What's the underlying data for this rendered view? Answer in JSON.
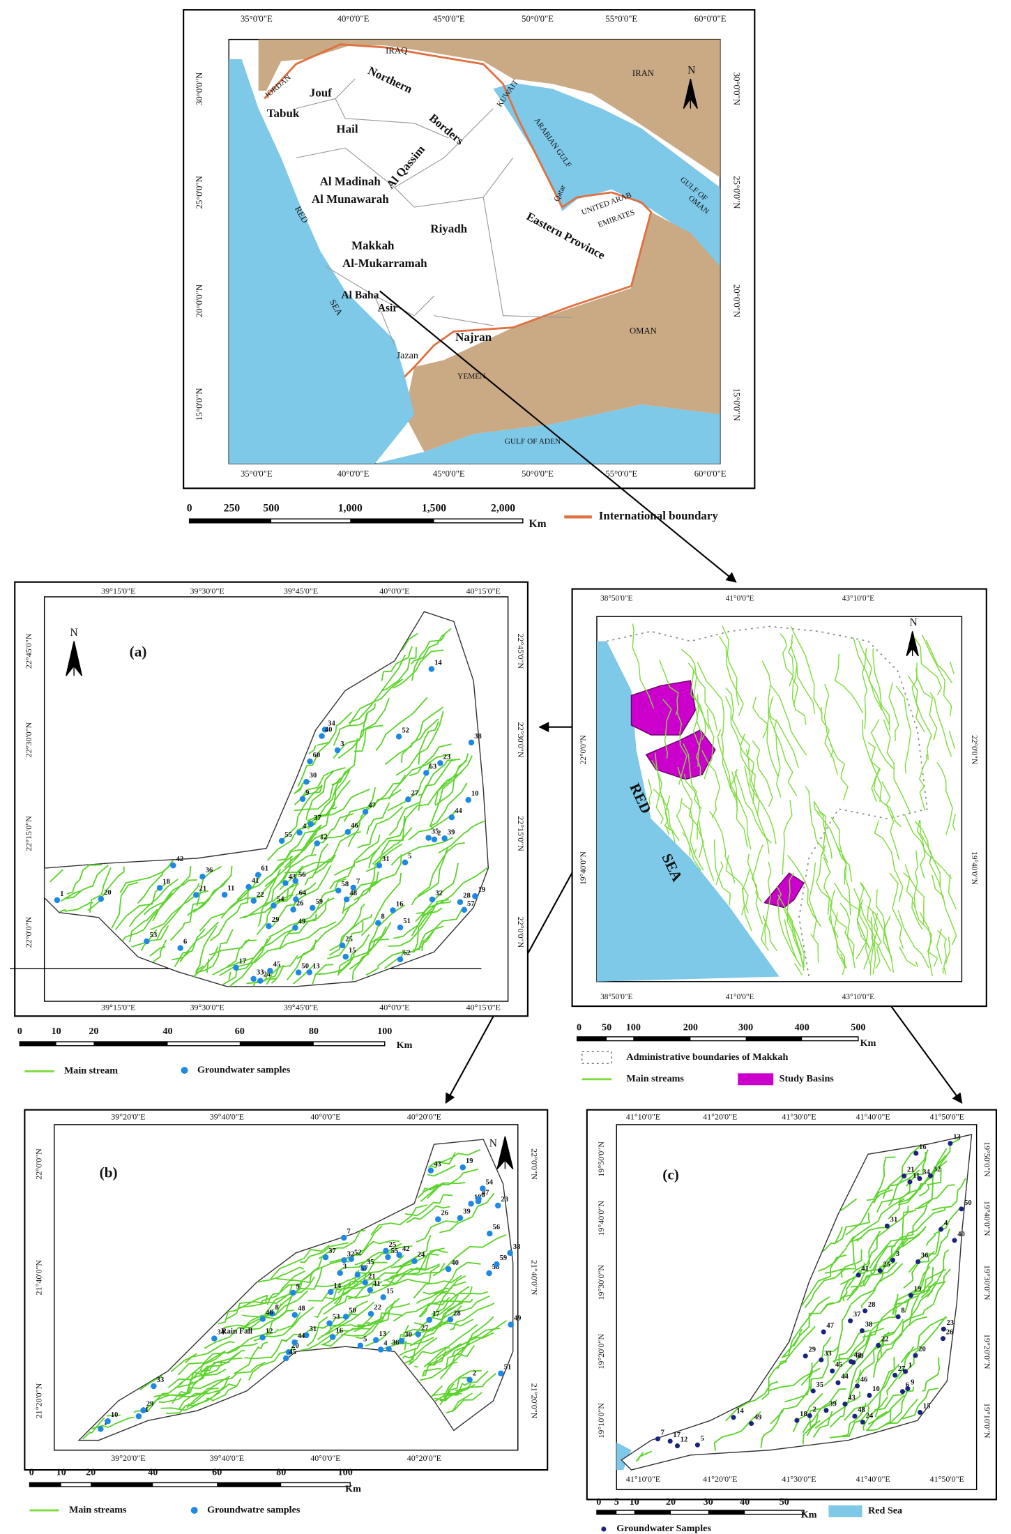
{
  "overview_map": {
    "lon_labels": [
      "35°0'0\"E",
      "40°0'0\"E",
      "45°0'0\"E",
      "50°0'0\"E",
      "55°0'0\"E",
      "60°0'0\"E"
    ],
    "lat_labels": [
      "30°0'0\"N",
      "25°0'0\"N",
      "20°0'0\"N",
      "15°0'0\"N"
    ],
    "place_labels": [
      "JORDAN",
      "IRAQ",
      "IRAN",
      "KUWAIT",
      "Jouf",
      "Northern",
      "Borders",
      "Tabuk",
      "Hail",
      "Al Qassim",
      "ARABIAN GULF",
      "Qatar",
      "UNITED ARAB",
      "EMIRATES",
      "GULF OF",
      "OMAN",
      "Al Madinah",
      "Al Munawarah",
      "Riyadh",
      "Eastern Province",
      "Makkah",
      "Al-Mukarramah",
      "RED",
      "SEA",
      "Al Baha",
      "Asir",
      "OMAN",
      "Najran",
      "Jazan",
      "YEMEN",
      "GULF OF ADEN"
    ],
    "north": "N",
    "scale_labels": [
      "0",
      "250",
      "500",
      "1,000",
      "1,500",
      "2,000"
    ],
    "scale_unit": "Km",
    "legend": "International boundary"
  },
  "makkah_map": {
    "lon_labels": [
      "38°50'0\"E",
      "41°0'0\"E",
      "43°10'0\"E"
    ],
    "lat_labels": [
      "22°0'0\"N",
      "19°40'0\"N"
    ],
    "sea_labels": [
      "RED",
      "SEA"
    ],
    "north": "N",
    "scale_labels": [
      "0",
      "50",
      "100",
      "200",
      "300",
      "400",
      "500"
    ],
    "scale_unit": "Km",
    "legend": [
      "Administrative boundaries of Makkah",
      "Main streams",
      "Study Basins"
    ]
  },
  "panel_a": {
    "label": "(a)",
    "lon_labels": [
      "39°15'0\"E",
      "39°30'0\"E",
      "39°45'0\"E",
      "40°0'0\"E",
      "40°15'0\"E"
    ],
    "lat_labels": [
      "22°45'0\"N",
      "22°30'0\"N",
      "22°15'0\"N",
      "22°0'0\"N"
    ],
    "north": "N",
    "samples": [
      "1",
      "2",
      "3",
      "4",
      "5",
      "6",
      "7",
      "8",
      "9",
      "10",
      "11",
      "12",
      "13",
      "14",
      "15",
      "16",
      "17",
      "18",
      "19",
      "20",
      "21",
      "22",
      "23",
      "24",
      "25",
      "26",
      "27",
      "28",
      "29",
      "30",
      "31",
      "32",
      "33",
      "34",
      "35",
      "36",
      "37",
      "38",
      "39",
      "40",
      "41",
      "42",
      "43",
      "44",
      "45",
      "46",
      "47",
      "48",
      "49",
      "50",
      "51",
      "52",
      "53",
      "54",
      "55",
      "56",
      "57",
      "58",
      "59",
      "60",
      "61",
      "62",
      "63",
      "64"
    ],
    "scale_labels": [
      "0",
      "10",
      "20",
      "40",
      "60",
      "80",
      "100"
    ],
    "scale_unit": "Km",
    "legend": [
      "Main stream",
      "Groundwater samples"
    ]
  },
  "panel_b": {
    "label": "(b)",
    "lon_labels": [
      "39°20'0\"E",
      "39°40'0\"E",
      "40°0'0\"E",
      "40°20'0\"E"
    ],
    "lat_labels": [
      "22°0'0\"N",
      "21°40'0\"N",
      "21°20'0\"N"
    ],
    "north": "N",
    "samples": [
      "1",
      "2",
      "3",
      "4",
      "5",
      "6",
      "7",
      "8",
      "9",
      "10",
      "11",
      "12",
      "13",
      "14",
      "15",
      "16",
      "17",
      "18",
      "19",
      "20",
      "21",
      "22",
      "23",
      "24",
      "25",
      "26",
      "27",
      "28",
      "29",
      "30",
      "31",
      "32",
      "33",
      "34",
      "35",
      "36",
      "37",
      "38",
      "39",
      "40",
      "41",
      "42",
      "43",
      "44",
      "45",
      "46",
      "47",
      "48",
      "49",
      "50",
      "51",
      "52",
      "53",
      "54",
      "55",
      "56",
      "57",
      "58",
      "59"
    ],
    "rain_label": "Rain Fall",
    "scale_labels": [
      "0",
      "10",
      "20",
      "40",
      "60",
      "80",
      "100"
    ],
    "scale_unit": "Km",
    "legend": [
      "Main streams",
      "Groundwatre samples"
    ]
  },
  "panel_c": {
    "label": "(c)",
    "lon_labels": [
      "41°10'0\"E",
      "41°20'0\"E",
      "41°30'0\"E",
      "41°40'0\"E",
      "41°50'0\"E"
    ],
    "lat_labels": [
      "19°50'0\"N",
      "19°40'0\"N",
      "19°30'0\"N",
      "19°20'0\"N",
      "19°10'0\"N"
    ],
    "north": "N",
    "samples": [
      "1",
      "2",
      "3",
      "4",
      "5",
      "6",
      "7",
      "8",
      "9",
      "10",
      "11",
      "12",
      "13",
      "14",
      "15",
      "16",
      "17",
      "18",
      "19",
      "20",
      "21",
      "22",
      "23",
      "24",
      "25",
      "26",
      "27",
      "28",
      "29",
      "30",
      "31",
      "32",
      "33",
      "34",
      "35",
      "36",
      "37",
      "38",
      "39",
      "40",
      "41",
      "42",
      "43",
      "44",
      "45",
      "46",
      "47",
      "48",
      "49",
      "50"
    ],
    "scale_labels": [
      "0",
      "5",
      "10",
      "20",
      "30",
      "40",
      "50"
    ],
    "scale_unit": "Km",
    "legend": [
      "Red Sea",
      "Groundwater Samples"
    ]
  }
}
